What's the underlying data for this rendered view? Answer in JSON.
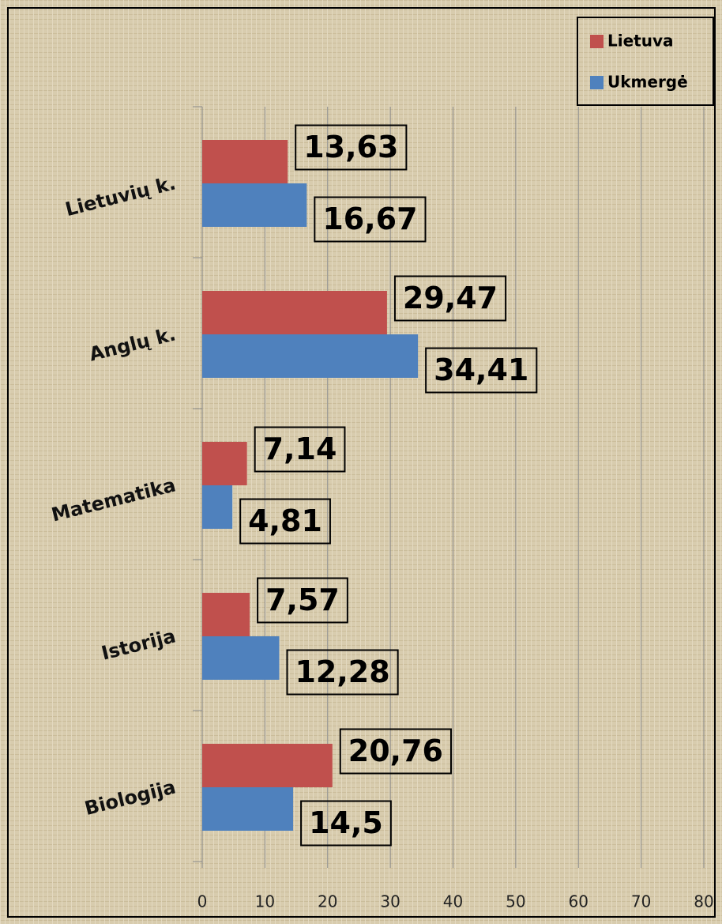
{
  "chart_data": {
    "type": "barh",
    "categories": [
      "Lietuvių k.",
      "Anglų k.",
      "Matematika",
      "Istorija",
      "Biologija"
    ],
    "series": [
      {
        "name": "Lietuva",
        "color": "#c0504d",
        "values": [
          13.63,
          29.47,
          7.14,
          7.57,
          20.76
        ],
        "value_labels": [
          "13,63",
          "29,47",
          "7,14",
          "7,57",
          "20,76"
        ]
      },
      {
        "name": "Ukmergė",
        "color": "#4f81bd",
        "values": [
          16.67,
          34.41,
          4.81,
          12.28,
          14.5
        ],
        "value_labels": [
          "16,67",
          "34,41",
          "4,81",
          "12,28",
          "14,5"
        ]
      }
    ],
    "xlim": [
      0,
      80
    ],
    "xticks": [
      0,
      10,
      20,
      30,
      40,
      50,
      60,
      70,
      80
    ],
    "grid": true,
    "legend": "top-right"
  }
}
